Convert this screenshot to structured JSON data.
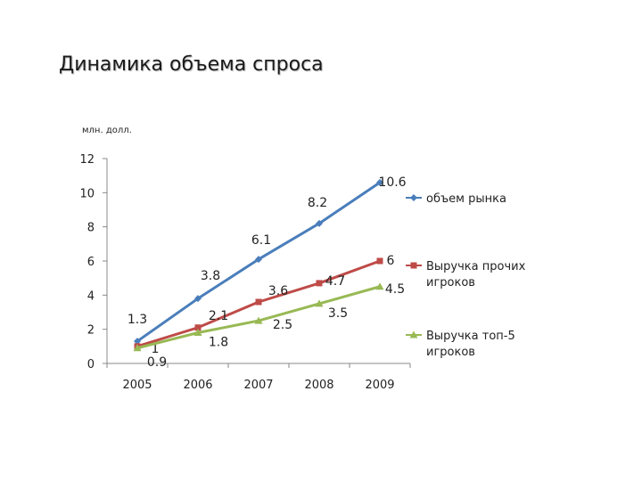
{
  "title": "Динамика объема спроса",
  "unit_label": "млн. долл.",
  "chart_data": {
    "type": "line",
    "title": "",
    "xlabel": "",
    "ylabel": "млн. долл.",
    "ylim": [
      0,
      12
    ],
    "yticks": [
      0,
      2,
      4,
      6,
      8,
      10,
      12
    ],
    "categories": [
      "2005",
      "2006",
      "2007",
      "2008",
      "2009"
    ],
    "grid": false,
    "legend_position": "right",
    "series": [
      {
        "name": "объем рынка",
        "color": "#4a7ebb",
        "marker": "diamond",
        "values": [
          1.3,
          3.8,
          6.1,
          8.2,
          10.6
        ],
        "labels": [
          "1.3",
          "3.8",
          "6.1",
          "8.2",
          "10.6"
        ]
      },
      {
        "name": "Выручка прочих игроков",
        "color": "#be4b48",
        "marker": "square",
        "values": [
          1,
          2.1,
          3.6,
          4.7,
          6
        ],
        "labels": [
          "1",
          "2.1",
          "3.6",
          "4.7",
          "6"
        ]
      },
      {
        "name": "Выручка топ-5 игроков",
        "color": "#98b954",
        "marker": "triangle",
        "values": [
          0.9,
          1.8,
          2.5,
          3.5,
          4.5
        ],
        "labels": [
          "0.9",
          "1.8",
          "2.5",
          "3.5",
          "4.5"
        ]
      }
    ]
  }
}
